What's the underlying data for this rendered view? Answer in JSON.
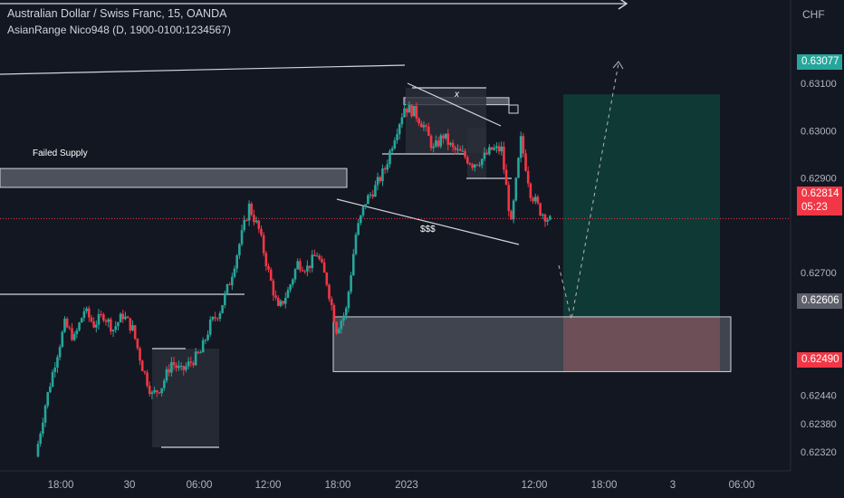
{
  "header": {
    "title": "Australian Dollar / Swiss Franc, 15, OANDA",
    "indicator": "AsianRange Nico948 (D, 1900-0100:1234567)",
    "currency": "CHF"
  },
  "badges": {
    "target": "0.63077",
    "current_price": "0.62814",
    "countdown": "05:23",
    "entry": "0.62606",
    "stop": "0.62490"
  },
  "annotations": {
    "failed_supply": "Failed Supply",
    "x_mark": "x",
    "liquidity": "$$$"
  },
  "colors": {
    "background": "#131722",
    "up": "#26a69a",
    "down": "#f23645",
    "profit_zone": "#0f3b37",
    "loss_zone": "#5b2a31"
  },
  "chart_data": {
    "type": "candlestick",
    "symbol": "AUDCHF",
    "timeframe": "15",
    "ylim": [
      0.6228,
      0.632
    ],
    "y_ticks": [
      "0.63100",
      "0.63000",
      "0.62900",
      "0.62700",
      "0.62440",
      "0.62380",
      "0.62320"
    ],
    "x_ticks": [
      "18:00",
      "30",
      "06:00",
      "12:00",
      "18:00",
      "2023",
      "12:00",
      "18:00",
      "3",
      "06:00"
    ],
    "close_path": [
      0.6231,
      0.6242,
      0.6251,
      0.6259,
      0.6256,
      0.6262,
      0.6259,
      0.6261,
      0.6258,
      0.6261,
      0.6258,
      0.625,
      0.6244,
      0.6246,
      0.6251,
      0.6249,
      0.6251,
      0.6253,
      0.6259,
      0.6262,
      0.6268,
      0.6276,
      0.6284,
      0.6279,
      0.627,
      0.6262,
      0.6266,
      0.6272,
      0.6271,
      0.6274,
      0.6268,
      0.6258,
      0.6262,
      0.6278,
      0.6285,
      0.6288,
      0.6292,
      0.6299,
      0.6305,
      0.6304,
      0.6301,
      0.6296,
      0.6299,
      0.6296,
      0.6295,
      0.6293,
      0.6294,
      0.6296,
      0.6296,
      0.628,
      0.6298,
      0.6287,
      0.6283,
      0.6281
    ],
    "current_price": 0.62814,
    "trade": {
      "target": 0.63077,
      "entry": 0.62606,
      "stop": 0.6249
    },
    "zones": [
      {
        "label": "Failed Supply",
        "top": 0.6292,
        "bottom": 0.6288
      },
      {
        "label": "",
        "top": 0.6307,
        "bottom": 0.63055
      },
      {
        "label": "",
        "top": 0.62606,
        "bottom": 0.6249
      }
    ]
  }
}
